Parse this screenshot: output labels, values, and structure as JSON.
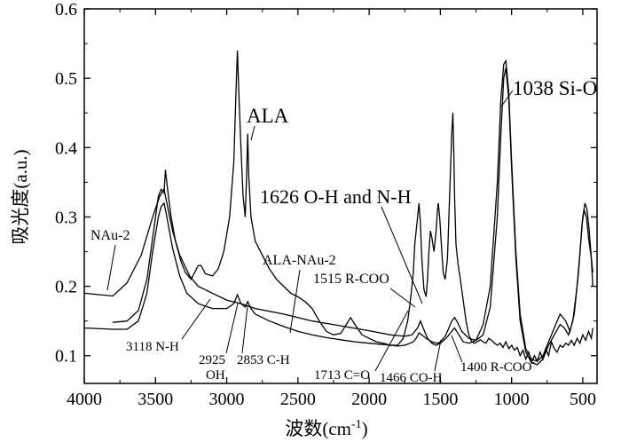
{
  "chart_data": {
    "type": "line",
    "title": "",
    "xlabel": "波数(cm",
    "xlabel_sup": "-1",
    "xlabel_close": ")",
    "ylabel": "吸光度(a.u.)",
    "xlim": [
      4000,
      400
    ],
    "ylim": [
      0.06,
      0.6
    ],
    "x_ticks": [
      "4000",
      "3500",
      "3000",
      "2500",
      "2000",
      "1500",
      "1000",
      "500"
    ],
    "y_ticks": [
      "0.1",
      "0.2",
      "0.3",
      "0.4",
      "0.5",
      "0.6"
    ],
    "grid": false,
    "series": [
      {
        "name": "NAu-2",
        "points": [
          [
            4000,
            0.19
          ],
          [
            3800,
            0.186
          ],
          [
            3700,
            0.205
          ],
          [
            3600,
            0.245
          ],
          [
            3520,
            0.3
          ],
          [
            3470,
            0.33
          ],
          [
            3440,
            0.34
          ],
          [
            3420,
            0.32
          ],
          [
            3380,
            0.28
          ],
          [
            3330,
            0.245
          ],
          [
            3260,
            0.215
          ],
          [
            3200,
            0.2
          ],
          [
            3100,
            0.19
          ],
          [
            3000,
            0.18
          ],
          [
            2900,
            0.175
          ],
          [
            2800,
            0.168
          ],
          [
            2600,
            0.16
          ],
          [
            2400,
            0.15
          ],
          [
            2200,
            0.143
          ],
          [
            2000,
            0.136
          ],
          [
            1850,
            0.13
          ],
          [
            1750,
            0.128
          ],
          [
            1700,
            0.13
          ],
          [
            1660,
            0.14
          ],
          [
            1640,
            0.15
          ],
          [
            1620,
            0.14
          ],
          [
            1590,
            0.125
          ],
          [
            1560,
            0.118
          ],
          [
            1530,
            0.115
          ],
          [
            1500,
            0.118
          ],
          [
            1460,
            0.125
          ],
          [
            1420,
            0.135
          ],
          [
            1400,
            0.14
          ],
          [
            1370,
            0.13
          ],
          [
            1340,
            0.12
          ],
          [
            1300,
            0.118
          ],
          [
            1250,
            0.122
          ],
          [
            1200,
            0.145
          ],
          [
            1150,
            0.2
          ],
          [
            1100,
            0.35
          ],
          [
            1075,
            0.47
          ],
          [
            1055,
            0.52
          ],
          [
            1040,
            0.525
          ],
          [
            1020,
            0.48
          ],
          [
            1000,
            0.38
          ],
          [
            970,
            0.25
          ],
          [
            940,
            0.16
          ],
          [
            900,
            0.11
          ],
          [
            860,
            0.095
          ],
          [
            820,
            0.092
          ],
          [
            780,
            0.1
          ],
          [
            740,
            0.12
          ],
          [
            700,
            0.14
          ],
          [
            660,
            0.16
          ],
          [
            620,
            0.15
          ],
          [
            590,
            0.135
          ],
          [
            560,
            0.16
          ],
          [
            530,
            0.22
          ],
          [
            505,
            0.29
          ],
          [
            490,
            0.31
          ],
          [
            475,
            0.3
          ],
          [
            460,
            0.27
          ],
          [
            440,
            0.24
          ],
          [
            430,
            0.22
          ]
        ]
      },
      {
        "name": "ALA",
        "points": [
          [
            3800,
            0.148
          ],
          [
            3700,
            0.15
          ],
          [
            3620,
            0.165
          ],
          [
            3560,
            0.21
          ],
          [
            3520,
            0.27
          ],
          [
            3480,
            0.33
          ],
          [
            3460,
            0.34
          ],
          [
            3440,
            0.335
          ],
          [
            3430,
            0.368
          ],
          [
            3415,
            0.34
          ],
          [
            3390,
            0.3
          ],
          [
            3360,
            0.265
          ],
          [
            3320,
            0.235
          ],
          [
            3290,
            0.22
          ],
          [
            3250,
            0.21
          ],
          [
            3200,
            0.23
          ],
          [
            3180,
            0.23
          ],
          [
            3150,
            0.218
          ],
          [
            3100,
            0.215
          ],
          [
            3060,
            0.225
          ],
          [
            3020,
            0.25
          ],
          [
            2980,
            0.3
          ],
          [
            2950,
            0.38
          ],
          [
            2935,
            0.48
          ],
          [
            2925,
            0.54
          ],
          [
            2915,
            0.48
          ],
          [
            2900,
            0.4
          ],
          [
            2885,
            0.33
          ],
          [
            2870,
            0.3
          ],
          [
            2860,
            0.36
          ],
          [
            2853,
            0.42
          ],
          [
            2845,
            0.36
          ],
          [
            2830,
            0.3
          ],
          [
            2800,
            0.265
          ],
          [
            2750,
            0.245
          ],
          [
            2700,
            0.225
          ],
          [
            2650,
            0.21
          ],
          [
            2600,
            0.2
          ],
          [
            2550,
            0.19
          ],
          [
            2500,
            0.185
          ],
          [
            2450,
            0.178
          ],
          [
            2400,
            0.168
          ],
          [
            2350,
            0.15
          ],
          [
            2300,
            0.135
          ],
          [
            2250,
            0.13
          ],
          [
            2200,
            0.132
          ],
          [
            2160,
            0.145
          ],
          [
            2130,
            0.155
          ],
          [
            2100,
            0.145
          ],
          [
            2050,
            0.13
          ],
          [
            2000,
            0.125
          ],
          [
            1950,
            0.12
          ],
          [
            1900,
            0.118
          ],
          [
            1850,
            0.115
          ],
          [
            1800,
            0.115
          ],
          [
            1760,
            0.125
          ],
          [
            1730,
            0.15
          ],
          [
            1713,
            0.175
          ],
          [
            1700,
            0.2
          ],
          [
            1690,
            0.22
          ],
          [
            1680,
            0.26
          ],
          [
            1660,
            0.3
          ],
          [
            1650,
            0.32
          ],
          [
            1640,
            0.29
          ],
          [
            1630,
            0.24
          ],
          [
            1615,
            0.195
          ],
          [
            1600,
            0.185
          ],
          [
            1590,
            0.21
          ],
          [
            1580,
            0.25
          ],
          [
            1570,
            0.28
          ],
          [
            1560,
            0.27
          ],
          [
            1545,
            0.25
          ],
          [
            1530,
            0.28
          ],
          [
            1520,
            0.31
          ],
          [
            1515,
            0.32
          ],
          [
            1505,
            0.3
          ],
          [
            1490,
            0.25
          ],
          [
            1480,
            0.22
          ],
          [
            1466,
            0.21
          ],
          [
            1450,
            0.24
          ],
          [
            1440,
            0.3
          ],
          [
            1430,
            0.36
          ],
          [
            1420,
            0.42
          ],
          [
            1412,
            0.45
          ],
          [
            1405,
            0.39
          ],
          [
            1400,
            0.33
          ],
          [
            1390,
            0.26
          ],
          [
            1375,
            0.23
          ],
          [
            1360,
            0.21
          ],
          [
            1340,
            0.18
          ],
          [
            1320,
            0.15
          ],
          [
            1300,
            0.13
          ],
          [
            1280,
            0.12
          ],
          [
            1260,
            0.118
          ],
          [
            1240,
            0.12
          ],
          [
            1220,
            0.123
          ],
          [
            1200,
            0.12
          ],
          [
            1180,
            0.118
          ],
          [
            1160,
            0.125
          ],
          [
            1140,
            0.122
          ],
          [
            1120,
            0.118
          ],
          [
            1100,
            0.115
          ],
          [
            1080,
            0.118
          ],
          [
            1060,
            0.112
          ],
          [
            1040,
            0.12
          ],
          [
            1020,
            0.11
          ],
          [
            1000,
            0.115
          ],
          [
            980,
            0.108
          ],
          [
            960,
            0.112
          ],
          [
            940,
            0.1
          ],
          [
            920,
            0.108
          ],
          [
            900,
            0.095
          ],
          [
            880,
            0.105
          ],
          [
            860,
            0.09
          ],
          [
            840,
            0.1
          ],
          [
            820,
            0.092
          ],
          [
            800,
            0.105
          ],
          [
            780,
            0.095
          ],
          [
            760,
            0.11
          ],
          [
            740,
            0.1
          ],
          [
            720,
            0.12
          ],
          [
            700,
            0.11
          ],
          [
            680,
            0.105
          ],
          [
            660,
            0.115
          ],
          [
            640,
            0.112
          ],
          [
            620,
            0.118
          ],
          [
            600,
            0.115
          ],
          [
            580,
            0.122
          ],
          [
            560,
            0.115
          ],
          [
            540,
            0.125
          ],
          [
            520,
            0.118
          ],
          [
            500,
            0.13
          ],
          [
            480,
            0.122
          ],
          [
            460,
            0.135
          ],
          [
            440,
            0.125
          ],
          [
            430,
            0.14
          ]
        ]
      },
      {
        "name": "ALA-NAu-2",
        "points": [
          [
            4000,
            0.14
          ],
          [
            3800,
            0.138
          ],
          [
            3700,
            0.138
          ],
          [
            3620,
            0.15
          ],
          [
            3560,
            0.19
          ],
          [
            3520,
            0.25
          ],
          [
            3480,
            0.3
          ],
          [
            3460,
            0.315
          ],
          [
            3440,
            0.32
          ],
          [
            3420,
            0.3
          ],
          [
            3380,
            0.255
          ],
          [
            3330,
            0.215
          ],
          [
            3280,
            0.19
          ],
          [
            3200,
            0.175
          ],
          [
            3100,
            0.168
          ],
          [
            3000,
            0.168
          ],
          [
            2950,
            0.175
          ],
          [
            2925,
            0.188
          ],
          [
            2900,
            0.175
          ],
          [
            2870,
            0.17
          ],
          [
            2853,
            0.178
          ],
          [
            2830,
            0.168
          ],
          [
            2800,
            0.16
          ],
          [
            2700,
            0.15
          ],
          [
            2600,
            0.142
          ],
          [
            2500,
            0.135
          ],
          [
            2400,
            0.13
          ],
          [
            2300,
            0.126
          ],
          [
            2200,
            0.123
          ],
          [
            2100,
            0.12
          ],
          [
            2000,
            0.118
          ],
          [
            1900,
            0.116
          ],
          [
            1800,
            0.114
          ],
          [
            1750,
            0.115
          ],
          [
            1713,
            0.118
          ],
          [
            1690,
            0.12
          ],
          [
            1670,
            0.125
          ],
          [
            1650,
            0.133
          ],
          [
            1630,
            0.13
          ],
          [
            1600,
            0.125
          ],
          [
            1560,
            0.12
          ],
          [
            1520,
            0.118
          ],
          [
            1500,
            0.12
          ],
          [
            1466,
            0.128
          ],
          [
            1440,
            0.14
          ],
          [
            1420,
            0.15
          ],
          [
            1400,
            0.155
          ],
          [
            1380,
            0.148
          ],
          [
            1350,
            0.135
          ],
          [
            1300,
            0.125
          ],
          [
            1250,
            0.122
          ],
          [
            1200,
            0.13
          ],
          [
            1150,
            0.17
          ],
          [
            1100,
            0.3
          ],
          [
            1075,
            0.42
          ],
          [
            1055,
            0.5
          ],
          [
            1040,
            0.515
          ],
          [
            1020,
            0.47
          ],
          [
            1000,
            0.37
          ],
          [
            970,
            0.24
          ],
          [
            940,
            0.15
          ],
          [
            900,
            0.105
          ],
          [
            860,
            0.09
          ],
          [
            820,
            0.087
          ],
          [
            780,
            0.095
          ],
          [
            740,
            0.115
          ],
          [
            700,
            0.13
          ],
          [
            660,
            0.145
          ],
          [
            630,
            0.14
          ],
          [
            600,
            0.13
          ],
          [
            570,
            0.15
          ],
          [
            540,
            0.2
          ],
          [
            515,
            0.26
          ],
          [
            500,
            0.3
          ],
          [
            485,
            0.32
          ],
          [
            470,
            0.31
          ],
          [
            455,
            0.28
          ],
          [
            440,
            0.24
          ],
          [
            430,
            0.2
          ]
        ]
      }
    ],
    "annotations": [
      {
        "text": "ALA",
        "size": 23
      },
      {
        "text": "1038 Si-O",
        "size": 23
      },
      {
        "text": "1626 O-H and N-H",
        "size": 22
      },
      {
        "text": "NAu-2",
        "size": 16
      },
      {
        "text": "ALA-NAu-2",
        "size": 16
      },
      {
        "text": "1515 R-COO",
        "size": 16
      },
      {
        "text": "3118 N-H",
        "size": 15
      },
      {
        "text": "2925",
        "size": 15
      },
      {
        "text": "OH",
        "size": 15
      },
      {
        "text": "2853 C-H",
        "size": 15
      },
      {
        "text": "1713 C=O",
        "size": 15
      },
      {
        "text": "1466 CO-H",
        "size": 15
      },
      {
        "text": "1400 R-COO",
        "sup": "-",
        "size": 15
      }
    ]
  }
}
